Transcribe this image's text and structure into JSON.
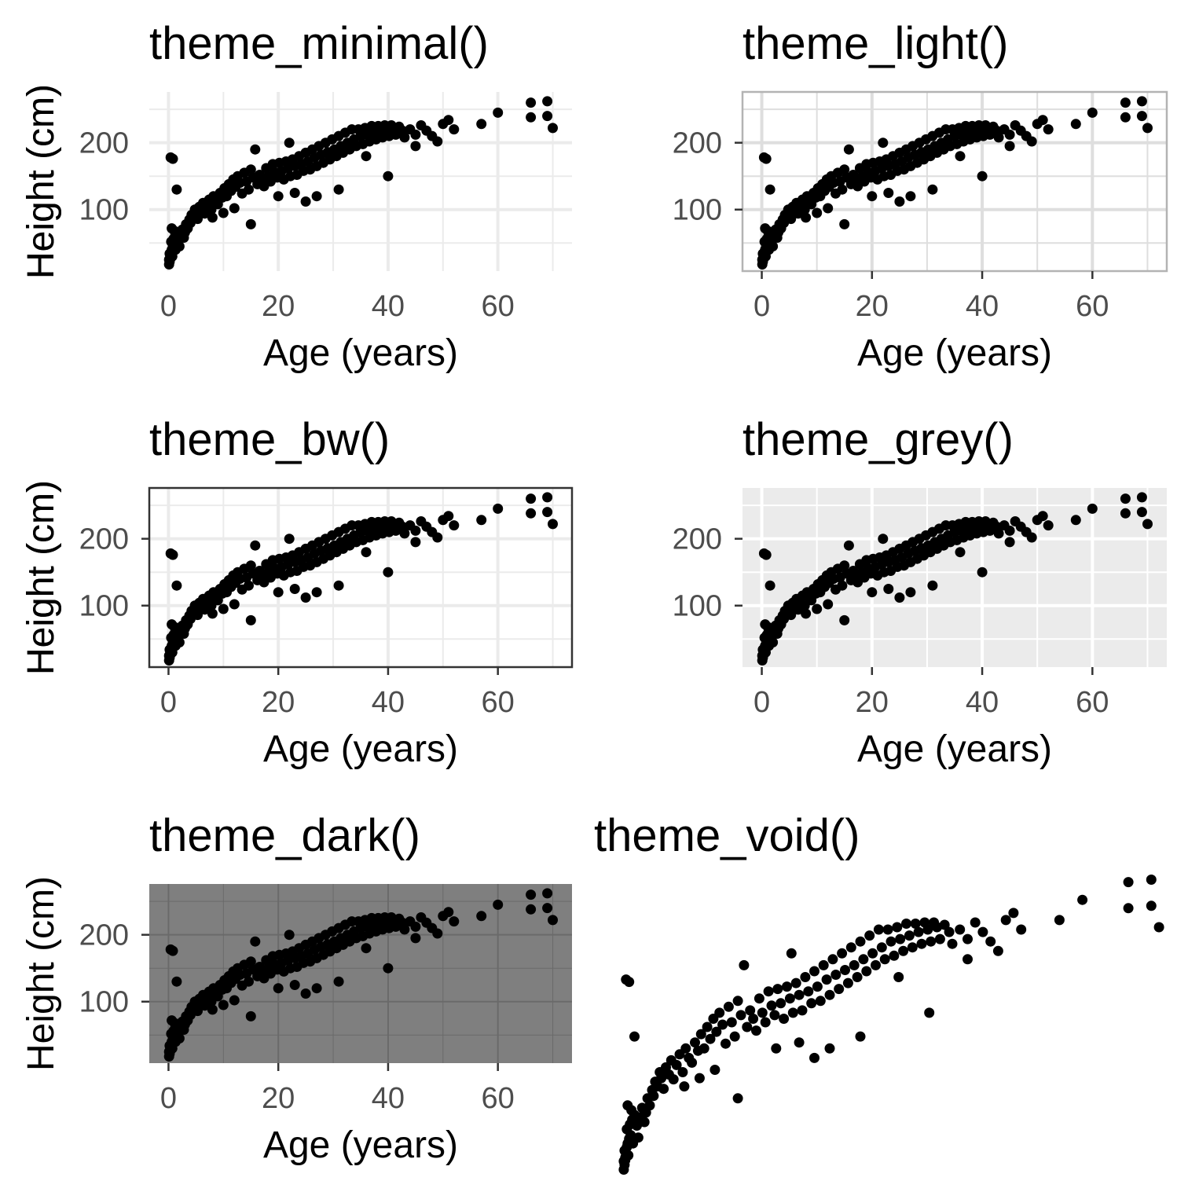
{
  "chart_data": [
    {
      "type": "scatter",
      "title": "theme_minimal()",
      "theme": "minimal",
      "xlabel": "Age (years)",
      "ylabel": "Height (cm)",
      "xticks": [
        0,
        20,
        40,
        60
      ],
      "yticks": [
        100,
        200
      ],
      "xlim": [
        -3.5,
        73.5
      ],
      "ylim": [
        8,
        276
      ],
      "grid": true,
      "panel_background": "#ffffff",
      "grid_color": "#ebebeb",
      "panel_border": "none",
      "point_color": "#000000"
    },
    {
      "type": "scatter",
      "title": "theme_light()",
      "theme": "light",
      "xlabel": "Age (years)",
      "ylabel": "Height (cm)",
      "xticks": [
        0,
        20,
        40,
        60
      ],
      "yticks": [
        100,
        200
      ],
      "xlim": [
        -3.5,
        73.5
      ],
      "ylim": [
        8,
        276
      ],
      "grid": true,
      "panel_background": "#ffffff",
      "grid_color": "#dedede",
      "panel_border": "#b3b3b3",
      "point_color": "#000000"
    },
    {
      "type": "scatter",
      "title": "theme_bw()",
      "theme": "bw",
      "xlabel": "Age (years)",
      "ylabel": "Height (cm)",
      "xticks": [
        0,
        20,
        40,
        60
      ],
      "yticks": [
        100,
        200
      ],
      "xlim": [
        -3.5,
        73.5
      ],
      "ylim": [
        8,
        276
      ],
      "grid": true,
      "panel_background": "#ffffff",
      "grid_color": "#ebebeb",
      "panel_border": "#333333",
      "point_color": "#000000"
    },
    {
      "type": "scatter",
      "title": "theme_grey()",
      "theme": "grey",
      "xlabel": "Age (years)",
      "ylabel": "Height (cm)",
      "xticks": [
        0,
        20,
        40,
        60
      ],
      "yticks": [
        100,
        200
      ],
      "xlim": [
        -3.5,
        73.5
      ],
      "ylim": [
        8,
        276
      ],
      "grid": true,
      "panel_background": "#ebebeb",
      "grid_color": "#ffffff",
      "panel_border": "none",
      "point_color": "#000000"
    },
    {
      "type": "scatter",
      "title": "theme_dark()",
      "theme": "dark",
      "xlabel": "Age (years)",
      "ylabel": "Height (cm)",
      "xticks": [
        0,
        20,
        40,
        60
      ],
      "yticks": [
        100,
        200
      ],
      "xlim": [
        -3.5,
        73.5
      ],
      "ylim": [
        8,
        276
      ],
      "grid": true,
      "panel_background": "#7f7f7f",
      "grid_color": "#6a6a6a",
      "panel_border": "none",
      "point_color": "#000000"
    },
    {
      "type": "scatter",
      "title": "theme_void()",
      "theme": "void",
      "xlabel": "",
      "ylabel": "",
      "xticks": [],
      "yticks": [],
      "xlim": [
        -0.3,
        70.3
      ],
      "ylim": [
        17,
        265
      ],
      "grid": false,
      "panel_background": "none",
      "panel_border": "none",
      "point_color": "#000000"
    }
  ],
  "points": [
    [
      0.1,
      18
    ],
    [
      0.2,
      22
    ],
    [
      0.1,
      25
    ],
    [
      0.3,
      28
    ],
    [
      0.4,
      31
    ],
    [
      0.2,
      34
    ],
    [
      0.5,
      37
    ],
    [
      0.6,
      40
    ],
    [
      0.3,
      26
    ],
    [
      0.7,
      30
    ],
    [
      0.8,
      44
    ],
    [
      1.0,
      47
    ],
    [
      0.5,
      52
    ],
    [
      0.9,
      56
    ],
    [
      1.2,
      60
    ],
    [
      1.5,
      64
    ],
    [
      1.1,
      68
    ],
    [
      0.6,
      72
    ],
    [
      0.4,
      178
    ],
    [
      0.8,
      176
    ],
    [
      1.5,
      130
    ],
    [
      1.3,
      40
    ],
    [
      1.8,
      55
    ],
    [
      2.0,
      45
    ],
    [
      2.2,
      62
    ],
    [
      2.5,
      70
    ],
    [
      2.8,
      58
    ],
    [
      3.0,
      66
    ],
    [
      3.2,
      78
    ],
    [
      3.5,
      72
    ],
    [
      3.8,
      85
    ],
    [
      4.0,
      80
    ],
    [
      4.2,
      92
    ],
    [
      4.5,
      88
    ],
    [
      4.8,
      100
    ],
    [
      5.0,
      95
    ],
    [
      5.3,
      86
    ],
    [
      5.6,
      104
    ],
    [
      6.0,
      98
    ],
    [
      6.3,
      110
    ],
    [
      6.6,
      94
    ],
    [
      7.0,
      106
    ],
    [
      7.4,
      115
    ],
    [
      7.8,
      100
    ],
    [
      8.2,
      120
    ],
    [
      8.6,
      112
    ],
    [
      9.0,
      108
    ],
    [
      9.4,
      125
    ],
    [
      9.8,
      118
    ],
    [
      10.2,
      132
    ],
    [
      10.6,
      120
    ],
    [
      11.0,
      138
    ],
    [
      11.4,
      128
    ],
    [
      11.8,
      145
    ],
    [
      12.2,
      134
    ],
    [
      12.6,
      150
    ],
    [
      13.0,
      140
    ],
    [
      13.4,
      124
    ],
    [
      13.8,
      155
    ],
    [
      14.2,
      142
    ],
    [
      14.6,
      130
    ],
    [
      15.0,
      160
    ],
    [
      15.4,
      148
    ],
    [
      15.8,
      190
    ],
    [
      16.2,
      138
    ],
    [
      16.6,
      152
    ],
    [
      17.0,
      145
    ],
    [
      17.4,
      135
    ],
    [
      17.8,
      162
    ],
    [
      18.2,
      150
    ],
    [
      18.6,
      142
    ],
    [
      19.0,
      168
    ],
    [
      19.4,
      156
    ],
    [
      19.8,
      148
    ],
    [
      20.2,
      170
    ],
    [
      20.6,
      158
    ],
    [
      21.0,
      145
    ],
    [
      21.4,
      172
    ],
    [
      21.8,
      162
    ],
    [
      22.2,
      150
    ],
    [
      22.6,
      175
    ],
    [
      23.0,
      165
    ],
    [
      23.4,
      152
    ],
    [
      23.8,
      180
    ],
    [
      24.2,
      168
    ],
    [
      24.6,
      158
    ],
    [
      25.0,
      185
    ],
    [
      25.4,
      172
    ],
    [
      25.8,
      160
    ],
    [
      26.2,
      190
    ],
    [
      26.6,
      178
    ],
    [
      27.0,
      165
    ],
    [
      27.4,
      195
    ],
    [
      27.8,
      182
    ],
    [
      28.2,
      170
    ],
    [
      28.6,
      200
    ],
    [
      29.0,
      186
    ],
    [
      29.4,
      175
    ],
    [
      29.8,
      205
    ],
    [
      30.2,
      190
    ],
    [
      30.6,
      180
    ],
    [
      31.0,
      210
    ],
    [
      31.4,
      195
    ],
    [
      31.8,
      185
    ],
    [
      32.2,
      215
    ],
    [
      32.6,
      200
    ],
    [
      33.0,
      190
    ],
    [
      33.4,
      220
    ],
    [
      33.8,
      205
    ],
    [
      34.2,
      195
    ],
    [
      34.6,
      220
    ],
    [
      35.0,
      210
    ],
    [
      35.4,
      198
    ],
    [
      35.8,
      222
    ],
    [
      36.2,
      212
    ],
    [
      36.6,
      202
    ],
    [
      37.0,
      225
    ],
    [
      37.4,
      215
    ],
    [
      37.8,
      205
    ],
    [
      38.2,
      225
    ],
    [
      38.6,
      218
    ],
    [
      39.0,
      208
    ],
    [
      39.4,
      226
    ],
    [
      39.8,
      220
    ],
    [
      40.2,
      210
    ],
    [
      40.6,
      226
    ],
    [
      41.0,
      222
    ],
    [
      41.4,
      212
    ],
    [
      42.0,
      224
    ],
    [
      42.6,
      218
    ],
    [
      43.0,
      208
    ],
    [
      44.0,
      220
    ],
    [
      45.0,
      212
    ],
    [
      46.0,
      226
    ],
    [
      47.0,
      218
    ],
    [
      48.0,
      210
    ],
    [
      49.0,
      202
    ],
    [
      50.0,
      228
    ],
    [
      51.0,
      234
    ],
    [
      52.0,
      220
    ],
    [
      57.0,
      228
    ],
    [
      60.0,
      245
    ],
    [
      66.0,
      260
    ],
    [
      66.0,
      238
    ],
    [
      69.0,
      262
    ],
    [
      69.0,
      240
    ],
    [
      70.0,
      222
    ],
    [
      45.0,
      195
    ],
    [
      36.0,
      180
    ],
    [
      27.0,
      120
    ],
    [
      22.0,
      200
    ],
    [
      31.0,
      130
    ],
    [
      40.0,
      150
    ],
    [
      15.0,
      78
    ],
    [
      20.0,
      120
    ],
    [
      23.0,
      125
    ],
    [
      25.0,
      112
    ],
    [
      12.0,
      102
    ],
    [
      8.0,
      88
    ],
    [
      10.0,
      95
    ]
  ]
}
